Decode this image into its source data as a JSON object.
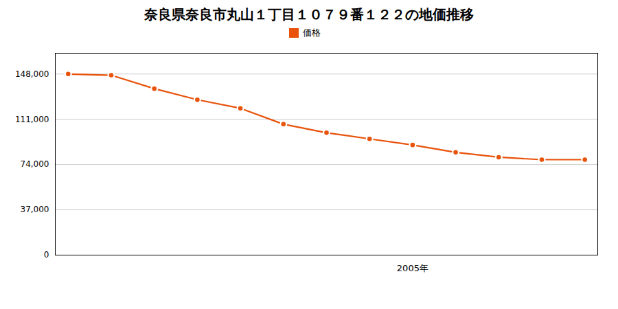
{
  "chart_data": {
    "type": "line",
    "title": "奈良県奈良市丸山１丁目１０７９番１２２の地価推移",
    "x": [
      1997,
      1998,
      1999,
      2000,
      2001,
      2002,
      2003,
      2004,
      2005,
      2006,
      2007,
      2008,
      2009
    ],
    "series": [
      {
        "name": "価格",
        "color": "#E8520A",
        "marker": "circle",
        "values": [
          148000,
          147000,
          136000,
          127000,
          120000,
          107000,
          100000,
          95000,
          90000,
          84000,
          80000,
          78000,
          78000
        ]
      }
    ],
    "xlim": [
      1996.7,
      2009.3
    ],
    "xticks": [],
    "ylim": [
      0,
      165000
    ],
    "yticks": [
      0,
      {
        "value": 37000,
        "label": "37,000"
      },
      {
        "value": 74000,
        "label": "74,000"
      },
      {
        "value": 111000,
        "label": "111,000"
      },
      {
        "value": 148000,
        "label": "148,000"
      }
    ],
    "annotations": [
      {
        "x": 2005,
        "text": "2005年"
      }
    ],
    "grid": true,
    "legend": "top",
    "tick_labels": "y"
  }
}
